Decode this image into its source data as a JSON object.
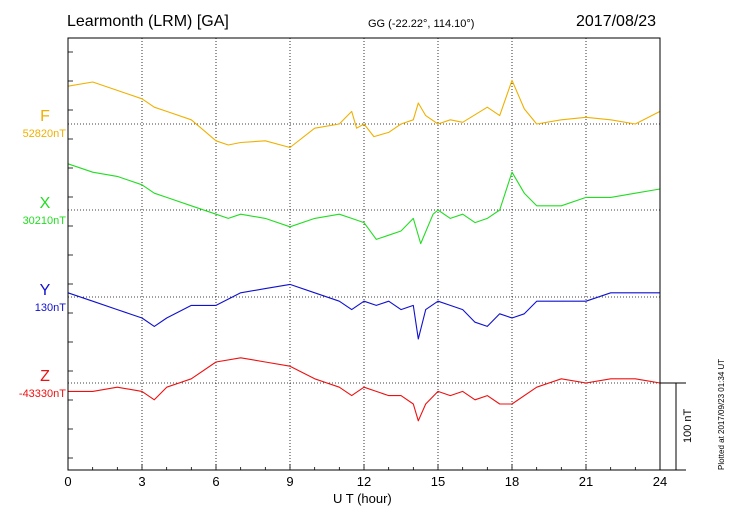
{
  "header": {
    "station": "Learmonth (LRM)  [GA]",
    "coords": "GG (-22.22°, 114.10°)",
    "date": "2017/08/23"
  },
  "channels": [
    {
      "name": "F",
      "base": "52820nT",
      "color": "#f0b000"
    },
    {
      "name": "X",
      "base": "30210nT",
      "color": "#22dd22"
    },
    {
      "name": "Y",
      "base": "130nT",
      "color": "#1010d0"
    },
    {
      "name": "Z",
      "base": "-43330nT",
      "color": "#ee1010"
    }
  ],
  "xaxis": {
    "label": "U T (hour)",
    "ticks": [
      "0",
      "3",
      "6",
      "9",
      "12",
      "15",
      "18",
      "21",
      "24"
    ]
  },
  "scale": {
    "label": "100 nT"
  },
  "plotted": "Plotted at 2017/09/23 01:34 UT",
  "chart_data": {
    "type": "line",
    "x_unit": "UT hour",
    "xlim": [
      0,
      24
    ],
    "y_unit": "nT",
    "series": [
      {
        "name": "F",
        "baseline": "52820nT",
        "x": [
          0,
          1,
          2,
          3,
          3.5,
          4,
          5,
          6,
          6.5,
          7,
          8,
          9,
          10,
          11,
          11.5,
          11.7,
          12,
          12.4,
          13,
          13.5,
          14,
          14.2,
          14.5,
          15,
          15.5,
          16,
          17,
          17.5,
          18,
          18.5,
          19,
          20,
          21,
          22,
          23,
          24
        ],
        "y": [
          45,
          50,
          40,
          30,
          20,
          15,
          5,
          -20,
          -25,
          -22,
          -20,
          -28,
          -5,
          0,
          15,
          -5,
          0,
          -15,
          -10,
          0,
          5,
          25,
          10,
          0,
          5,
          2,
          20,
          10,
          52,
          18,
          0,
          5,
          8,
          5,
          0,
          15
        ]
      },
      {
        "name": "X",
        "baseline": "30210nT",
        "x": [
          0,
          1,
          2,
          3,
          3.5,
          4,
          5,
          6,
          6.5,
          7,
          8,
          9,
          10,
          11,
          11.5,
          12,
          12.5,
          13,
          13.5,
          14,
          14.3,
          14.8,
          15,
          15.5,
          16,
          16.5,
          17,
          17.5,
          18,
          18.5,
          19,
          20,
          21,
          22,
          23,
          24
        ],
        "y": [
          55,
          45,
          40,
          30,
          20,
          15,
          5,
          -5,
          -10,
          -5,
          -10,
          -20,
          -10,
          -5,
          -10,
          -15,
          -35,
          -30,
          -25,
          -10,
          -40,
          -5,
          0,
          -10,
          -5,
          -15,
          -10,
          0,
          45,
          20,
          5,
          5,
          15,
          15,
          20,
          25
        ]
      },
      {
        "name": "Y",
        "baseline": "130nT",
        "x": [
          0,
          1,
          2,
          3,
          3.5,
          4,
          5,
          6,
          7,
          8,
          9,
          10,
          11,
          11.5,
          12,
          12.5,
          13,
          13.5,
          14,
          14.2,
          14.5,
          15,
          15.5,
          16,
          16.5,
          17,
          17.5,
          18,
          18.5,
          19,
          20,
          21,
          22,
          23,
          24
        ],
        "y": [
          5,
          -5,
          -15,
          -25,
          -35,
          -25,
          -10,
          -10,
          5,
          10,
          15,
          5,
          -5,
          -15,
          -5,
          -10,
          -5,
          -15,
          -10,
          -50,
          -15,
          -5,
          -10,
          -15,
          -30,
          -35,
          -20,
          -25,
          -20,
          -5,
          -5,
          -5,
          5,
          5,
          5
        ]
      },
      {
        "name": "Z",
        "baseline": "-43330nT",
        "x": [
          0,
          1,
          2,
          3,
          3.5,
          4,
          5,
          6,
          7,
          8,
          9,
          10,
          11,
          11.5,
          12,
          12.5,
          13,
          13.5,
          14,
          14.2,
          14.5,
          15,
          15.5,
          16,
          16.5,
          17,
          17.5,
          18,
          19,
          20,
          21,
          22,
          23,
          24
        ],
        "y": [
          -10,
          -10,
          -5,
          -10,
          -20,
          -5,
          5,
          25,
          30,
          25,
          20,
          5,
          -5,
          -15,
          -5,
          -10,
          -15,
          -15,
          -25,
          -45,
          -25,
          -10,
          -15,
          -10,
          -20,
          -15,
          -25,
          -25,
          -5,
          5,
          0,
          5,
          5,
          0
        ]
      }
    ]
  }
}
